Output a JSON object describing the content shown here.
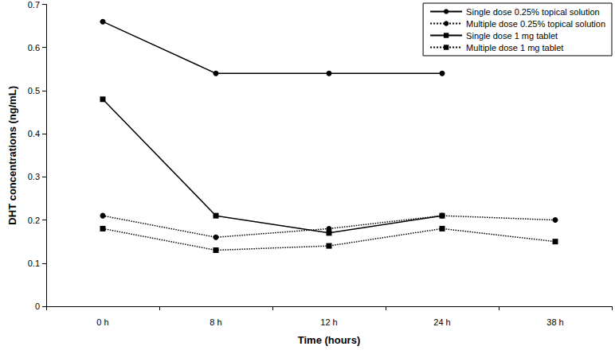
{
  "chart_data": {
    "type": "line",
    "x_label": "Time (hours)",
    "y_label": "DHT concentrations (ng/mL)",
    "categories": [
      "0 h",
      "8 h",
      "12 h",
      "24 h",
      "38 h"
    ],
    "series": [
      {
        "name": "Single dose 0.25% topical solution",
        "color": "#000000",
        "marker": "circle",
        "line_style": "solid",
        "values": [
          0.66,
          0.54,
          0.54,
          0.54,
          null
        ]
      },
      {
        "name": "Multiple dose 0.25% topical solution",
        "color": "#000000",
        "marker": "circle",
        "line_style": "dotted",
        "values": [
          0.21,
          0.16,
          0.18,
          0.21,
          0.2
        ]
      },
      {
        "name": "Single dose 1 mg tablet",
        "color": "#000000",
        "marker": "square",
        "line_style": "solid",
        "values": [
          0.48,
          0.21,
          0.17,
          0.21,
          null
        ]
      },
      {
        "name": "Multiple dose 1 mg tablet",
        "color": "#000000",
        "marker": "square",
        "line_style": "dotted",
        "values": [
          0.18,
          0.13,
          0.14,
          0.18,
          0.15
        ]
      }
    ],
    "ylim": [
      0,
      0.7
    ],
    "yticks": [
      0,
      0.1,
      0.2,
      0.3,
      0.4,
      0.5,
      0.6,
      0.7
    ],
    "grid": false,
    "legend": "top-right"
  }
}
